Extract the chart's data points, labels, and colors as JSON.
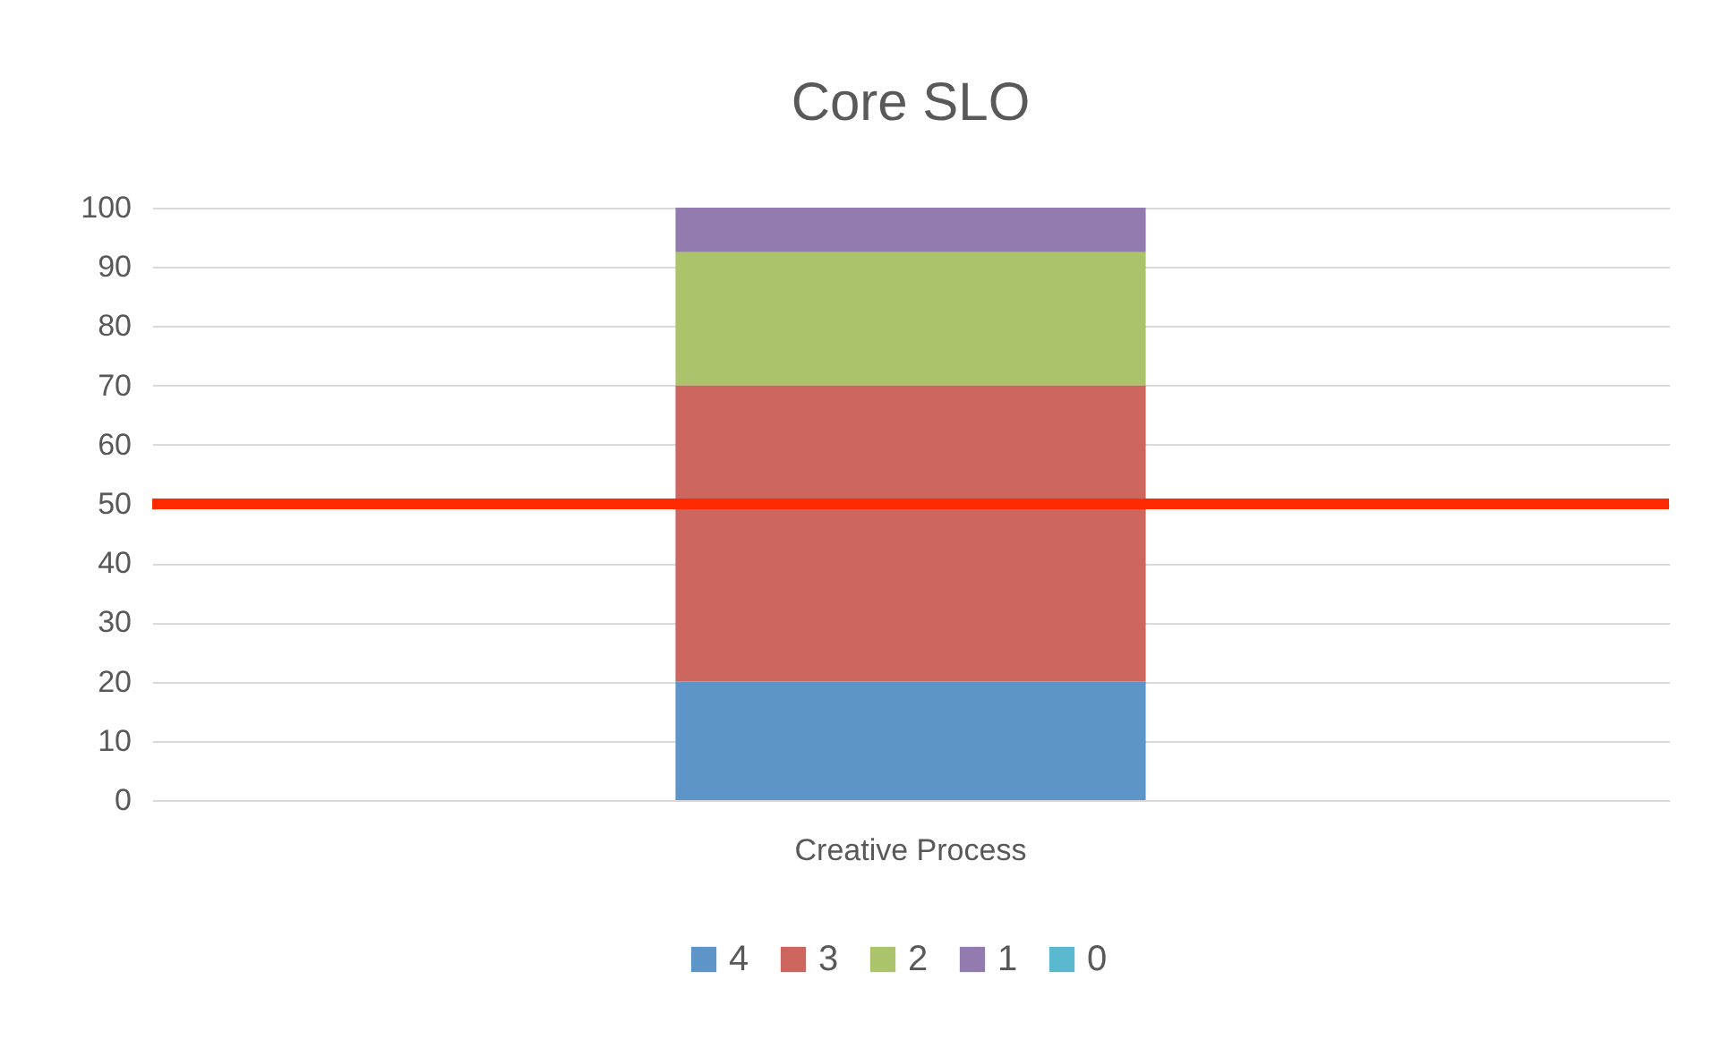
{
  "chart_data": {
    "type": "bar",
    "title": "Core SLO",
    "categories": [
      "Creative Process"
    ],
    "stacked": true,
    "series": [
      {
        "name": "4",
        "color": "#5e95c9",
        "values": [
          20
        ]
      },
      {
        "name": "3",
        "color": "#cd665e",
        "values": [
          50
        ]
      },
      {
        "name": "2",
        "color": "#abc46c",
        "values": [
          22.5
        ]
      },
      {
        "name": "1",
        "color": "#937bb0",
        "values": [
          7.5
        ]
      },
      {
        "name": "0",
        "color": "#5bb9cf",
        "values": [
          0
        ]
      }
    ],
    "ylim": [
      0,
      100
    ],
    "yticks": [
      0,
      10,
      20,
      30,
      40,
      50,
      60,
      70,
      80,
      90,
      100
    ],
    "grid": "y",
    "legend": "bottom",
    "ref_lines": [
      {
        "axis": "y",
        "value": 50,
        "color": "#ff2a00"
      }
    ]
  }
}
